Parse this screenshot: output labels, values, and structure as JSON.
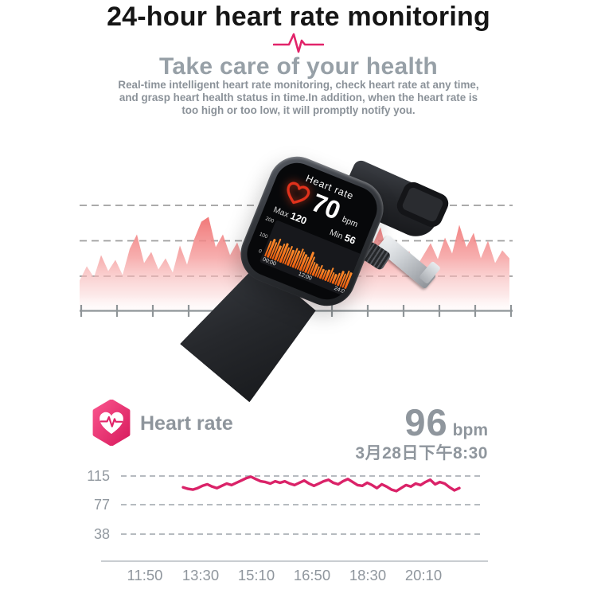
{
  "header": {
    "title": "24-hour heart rate monitoring",
    "subtitle": "Take care of your health",
    "description_lines": [
      "Real-time intelligent heart rate monitoring, check heart rate at any time,",
      "and grasp heart health status in time.In addition, when the heart rate is",
      "too high or too low, it will promptly notify you."
    ]
  },
  "watch": {
    "screen_title": "Heart rate",
    "value": "70",
    "unit": "bpm",
    "max_label": "Max",
    "max_value": "120",
    "min_label": "Min",
    "min_value": "56"
  },
  "app": {
    "label": "Heart rate",
    "value": "96",
    "unit": "bpm",
    "timestamp": "3月28日下午8:30"
  },
  "chart_data": [
    {
      "id": "watch-24h-heart-rate-bars",
      "type": "bar",
      "title": "Heart rate",
      "current_bpm": 70,
      "max_bpm": 120,
      "min_bpm": 56,
      "ylim": [
        0,
        200
      ],
      "yticks": [
        "200",
        "100",
        "0"
      ],
      "xticks": [
        "00:00",
        "12:00",
        "24:00"
      ],
      "values": [
        92,
        108,
        98,
        120,
        88,
        104,
        114,
        96,
        107,
        90,
        111,
        100,
        118,
        105,
        95,
        86,
        120,
        102,
        76,
        68,
        60,
        72,
        56,
        56,
        64,
        82,
        62,
        57,
        70,
        88,
        78,
        102,
        94,
        86
      ]
    },
    {
      "id": "app-heart-rate-trend",
      "type": "line",
      "current_bpm": 96,
      "timestamp": "3月28日下午8:30",
      "ylim": [
        0,
        130
      ],
      "yticks": [
        115,
        77,
        38
      ],
      "xticks": [
        "11:50",
        "13:30",
        "15:10",
        "16:50",
        "18:30",
        "20:10"
      ],
      "grid": "dashed horizontal",
      "values_bpm": [
        100,
        98,
        97,
        99,
        102,
        104,
        101,
        99,
        102,
        105,
        103,
        106,
        109,
        112,
        114,
        111,
        108,
        107,
        105,
        108,
        106,
        108,
        105,
        103,
        106,
        109,
        105,
        102,
        105,
        108,
        110,
        106,
        104,
        108,
        111,
        107,
        103,
        102,
        106,
        103,
        99,
        104,
        101,
        97,
        95,
        99,
        103,
        101,
        105,
        103,
        107,
        110,
        104,
        107,
        105,
        100,
        96,
        99
      ]
    },
    {
      "id": "background-pulse-area",
      "type": "area",
      "decorative": true,
      "grid": "dashed horizontal + bottom axis with ticks",
      "values": [
        38,
        56,
        42,
        70,
        50,
        64,
        45,
        78,
        96,
        60,
        74,
        52,
        66,
        48,
        82,
        58,
        90,
        112,
        118,
        80,
        96,
        70,
        86,
        60,
        76,
        55,
        68,
        50,
        78,
        62,
        88,
        70,
        95,
        75,
        60,
        82,
        66,
        90,
        72,
        100,
        115,
        85,
        105,
        70,
        88,
        60,
        75,
        55,
        70,
        85,
        65,
        92,
        72,
        108,
        80,
        98,
        66,
        88,
        60,
        76,
        66
      ]
    }
  ],
  "colors": {
    "accent_pink": "#e2246a",
    "trend_line": "#da2268",
    "heart_red": "#e2321c",
    "bar_orange": "#f47016",
    "title_text": "#151515",
    "gray_text": "#8e959c",
    "bg_grid": "#9f9f9f",
    "bg_axis": "#8f9598",
    "trend_grid": "#b6bbc0",
    "trend_axis": "#c9cdd1",
    "wave_top": "#ee5a5a",
    "wave_bottom": "#fff1f1"
  }
}
